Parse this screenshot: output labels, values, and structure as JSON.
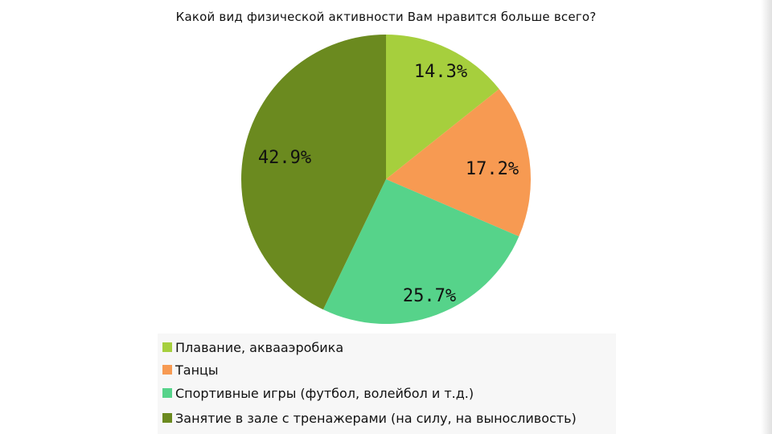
{
  "chart_data": {
    "type": "pie",
    "title": "Какой вид физической активности Вам нравится больше всего?",
    "slices": [
      {
        "name": "Плавание, аквааэробика",
        "value": 14.3,
        "label": "14.3%",
        "color": "#a6cf3d"
      },
      {
        "name": "Танцы",
        "value": 17.2,
        "label": "17.2%",
        "color": "#f79a52"
      },
      {
        "name": "Спортивные игры (футбол, волейбол и т.д.)",
        "value": 25.7,
        "label": "25.7%",
        "color": "#56d38a"
      },
      {
        "name": "Занятие в зале с тренажерами (на силу, на выносливость)",
        "value": 42.9,
        "label": "42.9%",
        "color": "#6b8a1f"
      }
    ],
    "legend_position": "bottom"
  }
}
